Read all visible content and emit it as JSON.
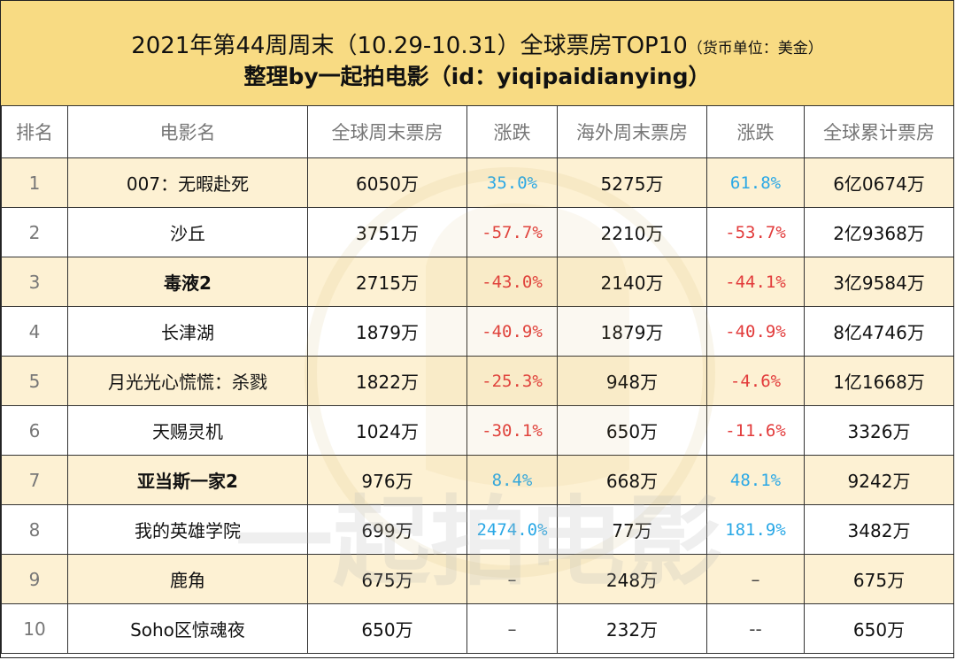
{
  "title": {
    "line1": "2021年第44周周末（10.29-10.31）全球票房TOP10",
    "unit": "（货币单位：美金）",
    "line2": "整理by一起拍电影（id：yiqipaidianying）"
  },
  "columns": [
    "排名",
    "电影名",
    "全球周末票房",
    "涨跌",
    "海外周末票房",
    "涨跌",
    "全球累计票房"
  ],
  "rows": [
    {
      "rank": "1",
      "name": "007：无暇赴死",
      "bold": false,
      "global_weekend": "6050万",
      "global_change": "35.0%",
      "global_trend": "up",
      "overseas_weekend": "5275万",
      "overseas_change": "61.8%",
      "overseas_trend": "up",
      "total": "6亿0674万"
    },
    {
      "rank": "2",
      "name": "沙丘",
      "bold": false,
      "global_weekend": "3751万",
      "global_change": "-57.7%",
      "global_trend": "down",
      "overseas_weekend": "2210万",
      "overseas_change": "-53.7%",
      "overseas_trend": "down",
      "total": "2亿9368万"
    },
    {
      "rank": "3",
      "name": "毒液2",
      "bold": true,
      "global_weekend": "2715万",
      "global_change": "-43.0%",
      "global_trend": "down",
      "overseas_weekend": "2140万",
      "overseas_change": "-44.1%",
      "overseas_trend": "down",
      "total": "3亿9584万"
    },
    {
      "rank": "4",
      "name": "长津湖",
      "bold": false,
      "global_weekend": "1879万",
      "global_change": "-40.9%",
      "global_trend": "down",
      "overseas_weekend": "1879万",
      "overseas_change": "-40.9%",
      "overseas_trend": "down",
      "total": "8亿4746万"
    },
    {
      "rank": "5",
      "name": "月光光心慌慌：杀戮",
      "bold": false,
      "global_weekend": "1822万",
      "global_change": "-25.3%",
      "global_trend": "down",
      "overseas_weekend": "948万",
      "overseas_change": "-4.6%",
      "overseas_trend": "down",
      "total": "1亿1668万"
    },
    {
      "rank": "6",
      "name": "天赐灵机",
      "bold": false,
      "global_weekend": "1024万",
      "global_change": "-30.1%",
      "global_trend": "down",
      "overseas_weekend": "650万",
      "overseas_change": "-11.6%",
      "overseas_trend": "down",
      "total": "3326万"
    },
    {
      "rank": "7",
      "name": "亚当斯一家2",
      "bold": true,
      "global_weekend": "976万",
      "global_change": "8.4%",
      "global_trend": "up",
      "overseas_weekend": "668万",
      "overseas_change": "48.1%",
      "overseas_trend": "up",
      "total": "9242万"
    },
    {
      "rank": "8",
      "name": "我的英雄学院",
      "bold": false,
      "global_weekend": "699万",
      "global_change": "2474.0%",
      "global_trend": "up",
      "overseas_weekend": "77万",
      "overseas_change": "181.9%",
      "overseas_trend": "up",
      "total": "3482万"
    },
    {
      "rank": "9",
      "name": "鹿角",
      "bold": false,
      "global_weekend": "675万",
      "global_change": "–",
      "global_trend": "none",
      "overseas_weekend": "248万",
      "overseas_change": "–",
      "overseas_trend": "none",
      "total": "675万"
    },
    {
      "rank": "10",
      "name": "Soho区惊魂夜",
      "bold": false,
      "global_weekend": "650万",
      "global_change": "–",
      "global_trend": "none",
      "overseas_weekend": "232万",
      "overseas_change": "--",
      "overseas_trend": "none",
      "total": "650万"
    }
  ],
  "watermark": {
    "text": "一起拍电影"
  },
  "colors": {
    "header_bg": "#f8db83",
    "odd_row_bg": "#fdf1d3",
    "up": "#2aa8e6",
    "down": "#e23b3b"
  }
}
